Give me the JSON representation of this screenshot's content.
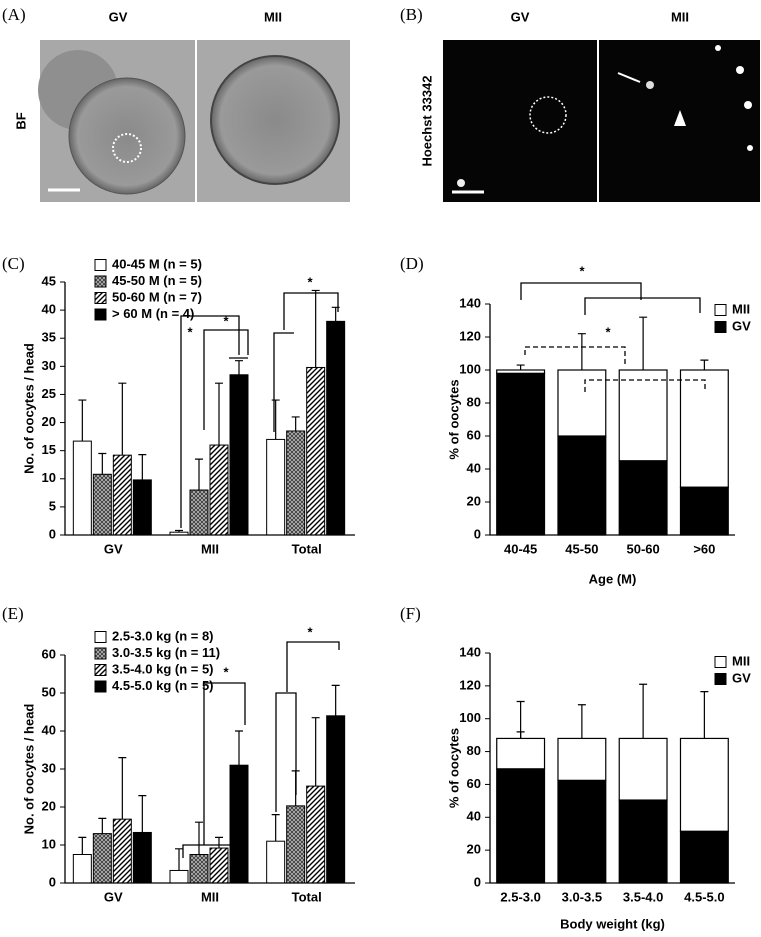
{
  "image_panels": [
    {
      "label": "(A)",
      "columns": [
        "GV",
        "MII"
      ],
      "row_label": "BF"
    },
    {
      "label": "(B)",
      "columns": [
        "GV",
        "MII"
      ],
      "row_label": "Hoechst 33342"
    }
  ],
  "chart_data": [
    {
      "type": "bar",
      "label": "(C)",
      "ylabel": "No. of oocytes / head",
      "categories": [
        "GV",
        "MII",
        "Total"
      ],
      "series": [
        {
          "name": "40-45 M (n = 5)",
          "color": "#ffffff",
          "pattern": "solid",
          "values": [
            16.7,
            0.5,
            17
          ],
          "errors": [
            7.3,
            0.3,
            7
          ]
        },
        {
          "name": "45-50 M (n = 5)",
          "color": "#999999",
          "pattern": "crosshatch",
          "values": [
            10.8,
            8,
            18.5
          ],
          "errors": [
            3.7,
            5.5,
            2.5
          ]
        },
        {
          "name": "50-60 M (n = 7)",
          "color": "#000000",
          "pattern": "diagonal",
          "values": [
            14.2,
            16,
            29.8
          ],
          "errors": [
            12.8,
            11,
            13.7
          ]
        },
        {
          "name": "> 60 M (n = 4)",
          "color": "#000000",
          "pattern": "solid",
          "values": [
            9.8,
            28.5,
            38
          ],
          "errors": [
            4.5,
            2.5,
            2.5
          ]
        }
      ],
      "ylim": [
        0,
        45
      ],
      "yticks": [
        0,
        5,
        10,
        15,
        20,
        25,
        30,
        35,
        40,
        45
      ],
      "annotations": [
        "*",
        "*",
        "*"
      ]
    },
    {
      "type": "bar",
      "stacked": true,
      "label": "(D)",
      "ylabel": "% of oocytes",
      "xlabel": "Age (M)",
      "categories": [
        "40-45",
        "45-50",
        "50-60",
        ">60"
      ],
      "series": [
        {
          "name": "GV",
          "color": "#000000",
          "pattern": "solid",
          "values": [
            98,
            60,
            45,
            29
          ],
          "errors": [
            1,
            21,
            31,
            6
          ]
        },
        {
          "name": "MII",
          "color": "#ffffff",
          "pattern": "solid",
          "values": [
            2,
            40,
            55,
            71
          ],
          "errors": [
            3,
            22,
            32,
            6
          ]
        }
      ],
      "ylim": [
        0,
        140
      ],
      "yticks": [
        0,
        20,
        40,
        60,
        80,
        100,
        120,
        140
      ],
      "annotations": [
        "*",
        "*"
      ]
    },
    {
      "type": "bar",
      "label": "(E)",
      "ylabel": "No. of oocytes / head",
      "categories": [
        "GV",
        "MII",
        "Total"
      ],
      "series": [
        {
          "name": "2.5-3.0 kg (n = 8)",
          "color": "#ffffff",
          "pattern": "solid",
          "values": [
            7.5,
            3.3,
            11
          ],
          "errors": [
            4.5,
            5.7,
            7
          ]
        },
        {
          "name": "3.0-3.5 kg (n = 11)",
          "color": "#999999",
          "pattern": "crosshatch",
          "values": [
            13,
            7.5,
            20.3
          ],
          "errors": [
            4,
            8.5,
            9.2
          ]
        },
        {
          "name": "3.5-4.0 kg (n = 5)",
          "color": "#000000",
          "pattern": "diagonal",
          "values": [
            16.8,
            9.2,
            25.5
          ],
          "errors": [
            16.2,
            2.8,
            18
          ]
        },
        {
          "name": "4.5-5.0 kg (n = 5)",
          "color": "#000000",
          "pattern": "solid",
          "values": [
            13.3,
            31,
            44
          ],
          "errors": [
            9.7,
            9,
            8
          ]
        }
      ],
      "ylim": [
        0,
        60
      ],
      "yticks": [
        0,
        10,
        20,
        30,
        40,
        50,
        60
      ],
      "annotations": [
        "*",
        "*"
      ]
    },
    {
      "type": "bar",
      "stacked": true,
      "label": "(F)",
      "ylabel": "% of oocytes",
      "xlabel": "Body weight (kg)",
      "categories": [
        "2.5-3.0",
        "3.0-3.5",
        "3.5-4.0",
        "4.5-5.0"
      ],
      "series": [
        {
          "name": "GV",
          "color": "#000000",
          "pattern": "solid",
          "values": [
            69.5,
            62.5,
            50.5,
            31.5
          ],
          "errors": [
            22.5,
            20.5,
            32.5,
            29.5
          ]
        },
        {
          "name": "MII",
          "color": "#ffffff",
          "pattern": "solid",
          "values": [
            18.5,
            25.5,
            37.5,
            56.5
          ],
          "errors": [
            22.5,
            20.5,
            33,
            28.5
          ]
        }
      ],
      "ylim": [
        0,
        140
      ],
      "yticks": [
        0,
        20,
        40,
        60,
        80,
        100,
        120,
        140
      ]
    }
  ]
}
